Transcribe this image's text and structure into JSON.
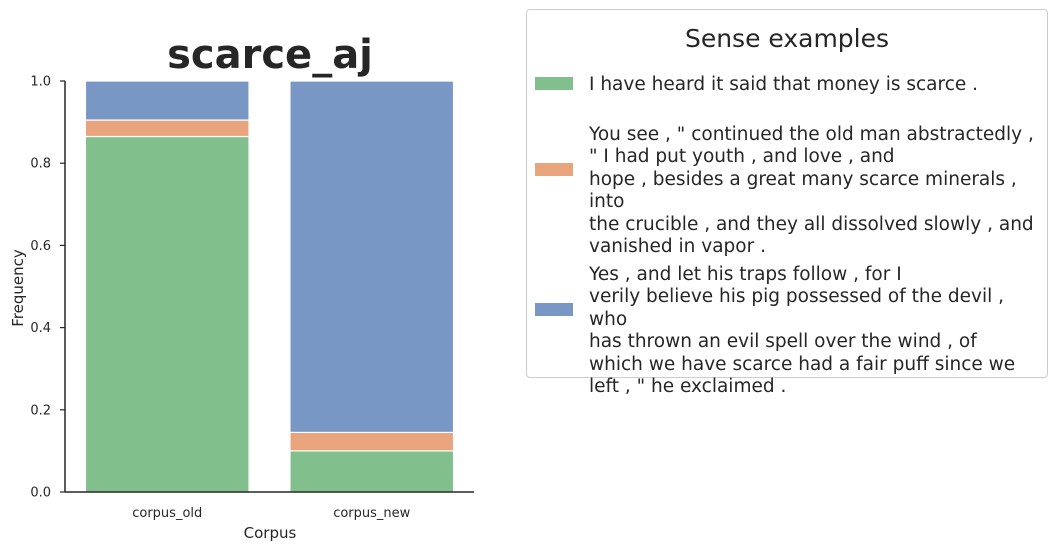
{
  "chart_data": {
    "type": "bar",
    "stacked": true,
    "title": "scarce_aj",
    "xlabel": "Corpus",
    "ylabel": "Frequency",
    "categories": [
      "corpus_old",
      "corpus_new"
    ],
    "ylim": [
      0,
      1.0
    ],
    "yticks": [
      "0.0",
      "0.2",
      "0.4",
      "0.6",
      "0.8",
      "1.0"
    ],
    "grid": false,
    "legend_position": "right",
    "series": [
      {
        "color": "#81bf8c",
        "values": [
          0.865,
          0.1
        ]
      },
      {
        "color": "#e8a47c",
        "values": [
          0.04,
          0.045
        ]
      },
      {
        "color": "#7997c5",
        "values": [
          0.095,
          0.855
        ]
      }
    ]
  },
  "legend": {
    "title": "Sense examples",
    "entries": [
      {
        "text": "I have heard it said that money is scarce .",
        "color": "#81bf8c"
      },
      {
        "text": "You see , \" continued the old man abstractedly ,\n\" I had put youth , and love , and\nhope , besides a great many scarce minerals , into\nthe crucible , and they all dissolved slowly , and\nvanished in vapor .",
        "color": "#e8a47c"
      },
      {
        "text": "Yes , and let his traps follow , for I\nverily believe his pig possessed of the devil , who\nhas thrown an evil spell over the wind , of\nwhich we have scarce had a fair puff since we\nleft , \" he exclaimed .",
        "color": "#7997c5"
      }
    ]
  }
}
